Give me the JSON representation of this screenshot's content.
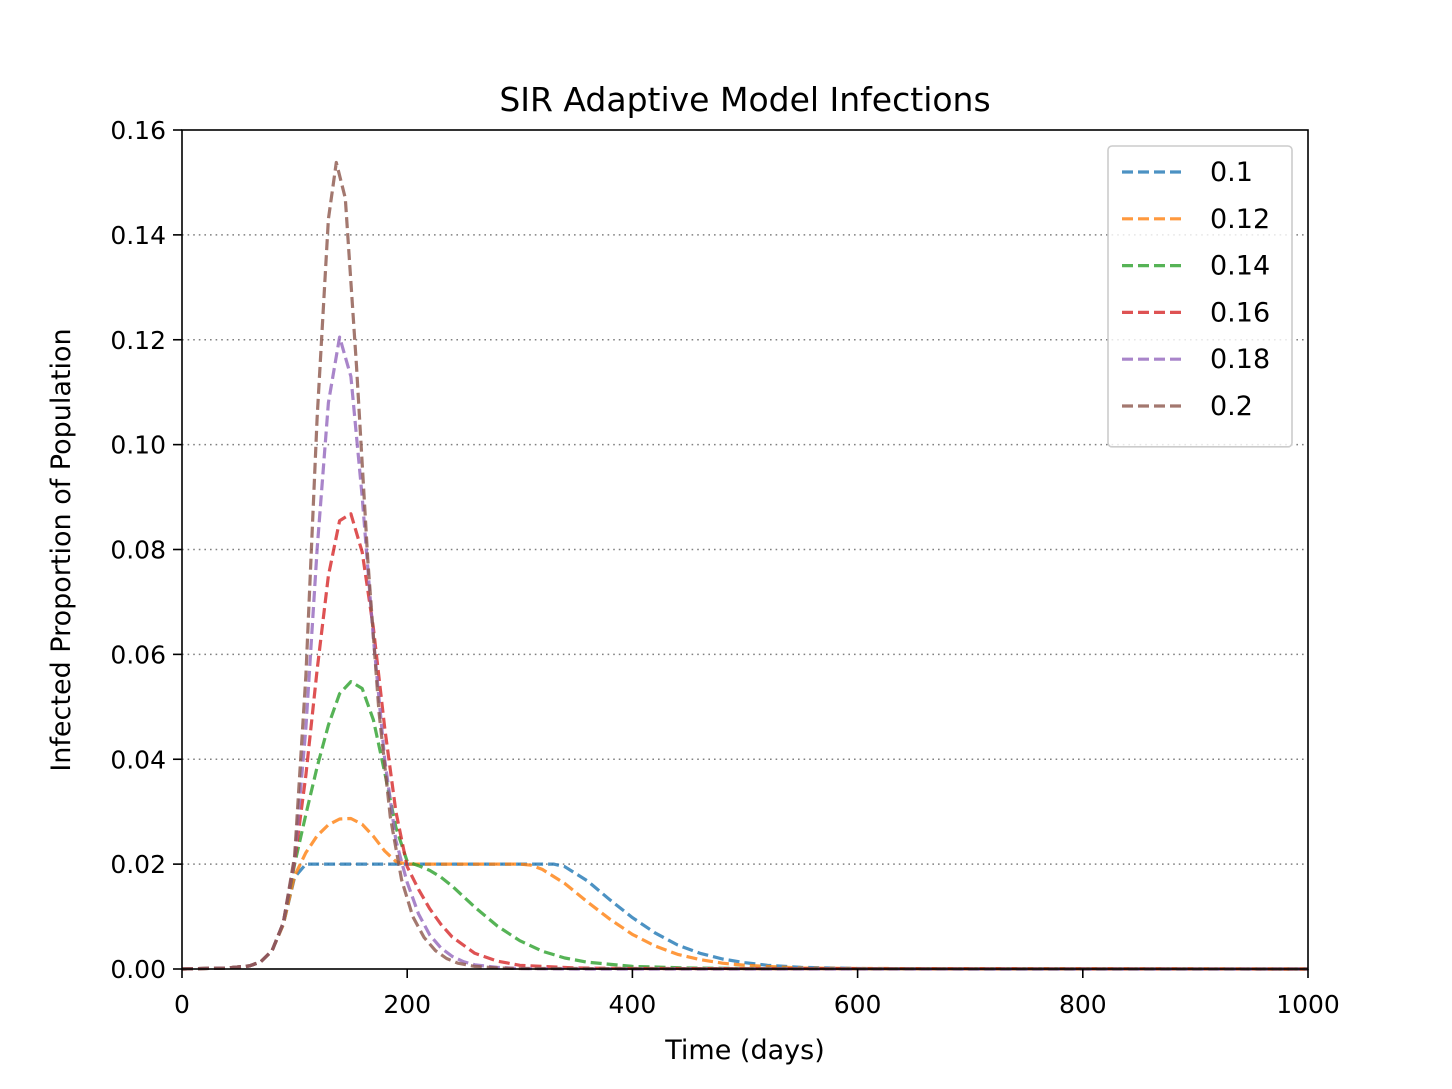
{
  "chart_data": {
    "type": "line",
    "title": "SIR Adaptive Model Infections",
    "xlabel": "Time (days)",
    "ylabel": "Infected Proportion of Population",
    "xlim": [
      0,
      1000
    ],
    "ylim": [
      0,
      0.16
    ],
    "xticks": [
      "0",
      "200",
      "400",
      "600",
      "800",
      "1000"
    ],
    "yticks": [
      "0.00",
      "0.02",
      "0.04",
      "0.06",
      "0.08",
      "0.10",
      "0.12",
      "0.14",
      "0.16"
    ],
    "grid": "horizontal dotted",
    "legend_position": "upper right",
    "line_style": "dashed",
    "series": [
      {
        "name": "0.1",
        "color": "#1f77b4",
        "x": [
          0,
          40,
          60,
          70,
          80,
          90,
          100,
          110,
          200,
          250,
          300,
          330,
          340,
          360,
          380,
          400,
          420,
          440,
          460,
          480,
          500,
          520,
          550,
          600,
          700,
          1000
        ],
        "y": [
          0,
          0.0002,
          0.0006,
          0.0014,
          0.0035,
          0.0085,
          0.0175,
          0.02,
          0.02,
          0.02,
          0.02,
          0.02,
          0.0195,
          0.0168,
          0.0132,
          0.0098,
          0.0069,
          0.0046,
          0.003,
          0.0019,
          0.0012,
          0.0007,
          0.0003,
          0.0001,
          0,
          0
        ]
      },
      {
        "name": "0.12",
        "color": "#ff7f0e",
        "x": [
          0,
          40,
          60,
          70,
          80,
          90,
          100,
          110,
          120,
          130,
          140,
          150,
          160,
          170,
          180,
          190,
          200,
          250,
          300,
          310,
          320,
          340,
          360,
          380,
          400,
          420,
          440,
          460,
          480,
          500,
          550,
          600,
          1000
        ],
        "y": [
          0,
          0.0002,
          0.0006,
          0.0014,
          0.0035,
          0.0085,
          0.0178,
          0.0222,
          0.0254,
          0.0275,
          0.0286,
          0.0287,
          0.0276,
          0.0253,
          0.0225,
          0.0205,
          0.02,
          0.02,
          0.02,
          0.0198,
          0.019,
          0.0163,
          0.0128,
          0.0095,
          0.0066,
          0.0044,
          0.0028,
          0.0018,
          0.0011,
          0.0007,
          0.0002,
          0.0001,
          0
        ]
      },
      {
        "name": "0.14",
        "color": "#2ca02c",
        "x": [
          0,
          40,
          60,
          70,
          80,
          90,
          100,
          110,
          120,
          130,
          140,
          150,
          160,
          170,
          180,
          190,
          200,
          210,
          220,
          230,
          240,
          250,
          260,
          280,
          300,
          320,
          340,
          360,
          400,
          450,
          500,
          1000
        ],
        "y": [
          0,
          0.0002,
          0.0006,
          0.0014,
          0.0035,
          0.0088,
          0.02,
          0.0295,
          0.0385,
          0.0465,
          0.0525,
          0.0548,
          0.0535,
          0.0475,
          0.0375,
          0.027,
          0.0205,
          0.0197,
          0.0188,
          0.0175,
          0.0158,
          0.0138,
          0.0118,
          0.0082,
          0.0054,
          0.0034,
          0.0021,
          0.0013,
          0.0005,
          0.0002,
          0.0001,
          0
        ]
      },
      {
        "name": "0.16",
        "color": "#d62728",
        "x": [
          0,
          40,
          60,
          70,
          80,
          90,
          100,
          110,
          120,
          130,
          140,
          150,
          160,
          170,
          180,
          190,
          200,
          210,
          220,
          230,
          240,
          260,
          280,
          300,
          350,
          400,
          1000
        ],
        "y": [
          0,
          0.0002,
          0.0006,
          0.0014,
          0.0035,
          0.0088,
          0.0205,
          0.037,
          0.057,
          0.075,
          0.0855,
          0.0868,
          0.0795,
          0.065,
          0.046,
          0.03,
          0.0195,
          0.0152,
          0.0115,
          0.0085,
          0.0061,
          0.003,
          0.0015,
          0.0007,
          0.0002,
          0.0001,
          0
        ]
      },
      {
        "name": "0.18",
        "color": "#9467bd",
        "x": [
          0,
          40,
          60,
          70,
          80,
          90,
          100,
          110,
          120,
          130,
          140,
          150,
          160,
          170,
          180,
          190,
          200,
          210,
          220,
          230,
          240,
          250,
          260,
          280,
          300,
          350,
          1000
        ],
        "y": [
          0,
          0.0002,
          0.0006,
          0.0014,
          0.0035,
          0.0088,
          0.021,
          0.046,
          0.08,
          0.108,
          0.1205,
          0.113,
          0.09,
          0.063,
          0.04,
          0.0245,
          0.0165,
          0.0105,
          0.0065,
          0.004,
          0.0024,
          0.0014,
          0.0008,
          0.0003,
          0.0001,
          0,
          0
        ]
      },
      {
        "name": "0.2",
        "color": "#8c564b",
        "x": [
          0,
          40,
          60,
          70,
          80,
          90,
          100,
          110,
          120,
          130,
          137,
          145,
          155,
          165,
          175,
          185,
          195,
          205,
          215,
          225,
          235,
          245,
          260,
          280,
          300,
          1000
        ],
        "y": [
          0,
          0.0002,
          0.0006,
          0.0014,
          0.0035,
          0.0088,
          0.0215,
          0.056,
          0.105,
          0.143,
          0.1538,
          0.147,
          0.115,
          0.078,
          0.049,
          0.029,
          0.017,
          0.01,
          0.006,
          0.0035,
          0.002,
          0.0011,
          0.0005,
          0.0002,
          0.0001,
          0
        ]
      }
    ]
  }
}
